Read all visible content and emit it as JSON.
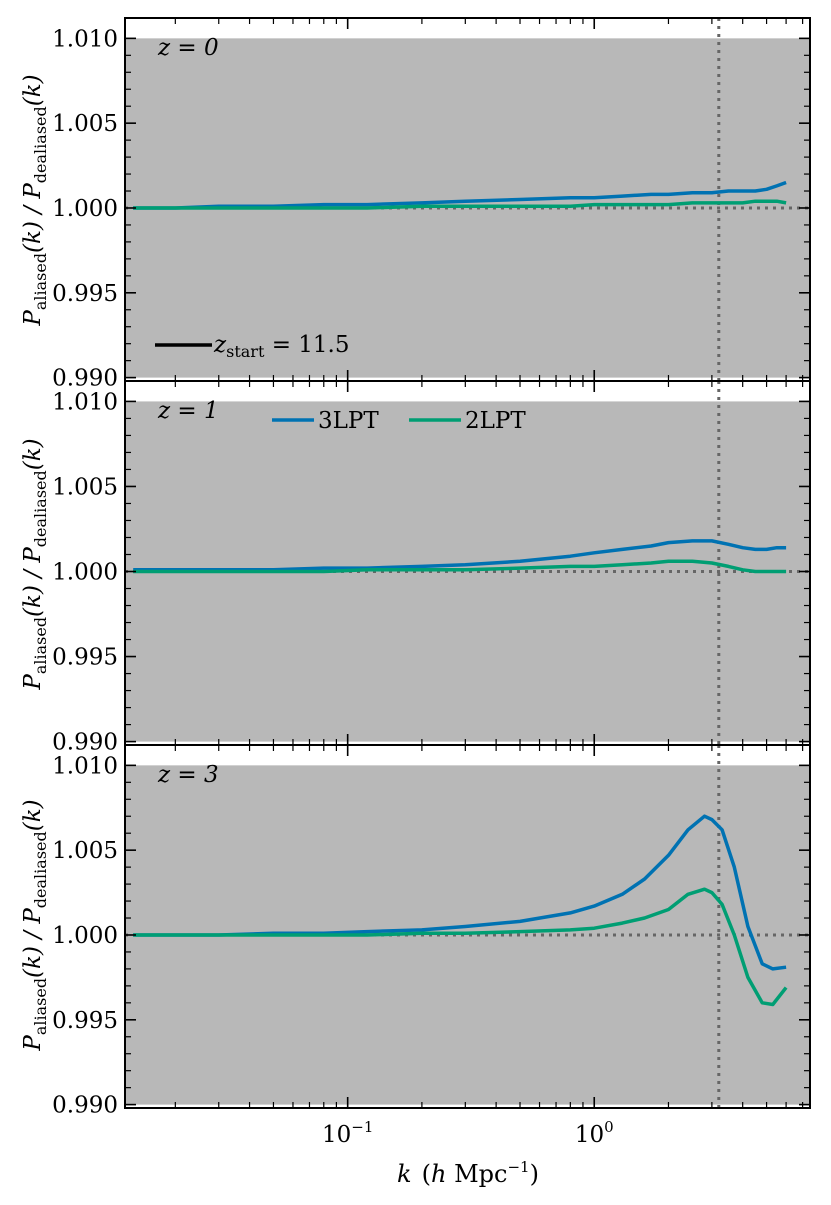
{
  "xlabel": {
    "k": "k",
    "open": "(",
    "h": "h",
    "mpc": " Mpc",
    "exp": "−1",
    "close": ")"
  },
  "ylabel": {
    "p1": "P",
    "sub1": "aliased",
    "mid": "(k) / ",
    "p2": "P",
    "sub2": "dealiased",
    "end": "(k)"
  },
  "legend_zstart": {
    "z": "z",
    "sub": "start",
    "text": " = 11.5"
  },
  "colors": {
    "3LPT": "#0072b2",
    "2LPT": "#009e73",
    "shade": "#b8b8b8",
    "reference": "#666666"
  },
  "chart_data": [
    {
      "type": "line",
      "panel_label": "z = 0",
      "xscale": "log",
      "xlim": [
        0.0125,
        7.5
      ],
      "ylim": [
        0.9898,
        1.0112
      ],
      "yticks": [
        "0.990",
        "0.995",
        "1.000",
        "1.005",
        "1.010"
      ],
      "xticks": [],
      "shaded_region": {
        "y": [
          0.99,
          1.01
        ]
      },
      "reference_lines": {
        "horizontal_y": 1.0,
        "vertical_x": 3.2
      },
      "legend": {
        "entries": [
          "z_start = 11.5"
        ],
        "placement": "lower-left"
      },
      "series": [
        {
          "name": "3LPT",
          "color": "#0072b2",
          "x": [
            0.0135,
            0.02,
            0.03,
            0.05,
            0.08,
            0.12,
            0.2,
            0.3,
            0.5,
            0.8,
            1.0,
            1.3,
            1.7,
            2.0,
            2.5,
            3.0,
            3.5,
            4.0,
            4.5,
            5.0,
            5.5,
            6.0
          ],
          "y": [
            1.0,
            1.0,
            1.0001,
            1.0001,
            1.0002,
            1.0002,
            1.0003,
            1.0004,
            1.0005,
            1.0006,
            1.0006,
            1.0007,
            1.0008,
            1.0008,
            1.0009,
            1.0009,
            1.001,
            1.001,
            1.001,
            1.0011,
            1.0013,
            1.0015
          ]
        },
        {
          "name": "2LPT",
          "color": "#009e73",
          "x": [
            0.0135,
            0.02,
            0.03,
            0.05,
            0.08,
            0.12,
            0.2,
            0.3,
            0.5,
            0.8,
            1.0,
            1.3,
            1.7,
            2.0,
            2.5,
            3.0,
            3.5,
            4.0,
            4.5,
            5.0,
            5.5,
            6.0
          ],
          "y": [
            1.0,
            1.0,
            1.0,
            1.0,
            1.0,
            1.0,
            1.0001,
            1.0001,
            1.0001,
            1.0001,
            1.0002,
            1.0002,
            1.0002,
            1.0002,
            1.0003,
            1.0003,
            1.0003,
            1.0003,
            1.0004,
            1.0004,
            1.0004,
            1.0003
          ]
        }
      ]
    },
    {
      "type": "line",
      "panel_label": "z = 1",
      "xscale": "log",
      "xlim": [
        0.0125,
        7.5
      ],
      "ylim": [
        0.9898,
        1.0112
      ],
      "yticks": [
        "0.990",
        "0.995",
        "1.000",
        "1.005",
        "1.010"
      ],
      "xticks": [],
      "shaded_region": {
        "y": [
          0.99,
          1.01
        ]
      },
      "reference_lines": {
        "horizontal_y": 1.0,
        "vertical_x": 3.2
      },
      "legend": {
        "entries": [
          "3LPT",
          "2LPT"
        ],
        "placement": "top-center"
      },
      "series": [
        {
          "name": "3LPT",
          "color": "#0072b2",
          "x": [
            0.0135,
            0.02,
            0.03,
            0.05,
            0.08,
            0.12,
            0.2,
            0.3,
            0.5,
            0.8,
            1.0,
            1.3,
            1.7,
            2.0,
            2.5,
            3.0,
            3.5,
            4.0,
            4.5,
            5.0,
            5.5,
            6.0
          ],
          "y": [
            1.0001,
            1.0001,
            1.0001,
            1.0001,
            1.0002,
            1.0002,
            1.0003,
            1.0004,
            1.0006,
            1.0009,
            1.0011,
            1.0013,
            1.0015,
            1.0017,
            1.0018,
            1.0018,
            1.0016,
            1.0014,
            1.0013,
            1.0013,
            1.0014,
            1.0014
          ]
        },
        {
          "name": "2LPT",
          "color": "#009e73",
          "x": [
            0.0135,
            0.02,
            0.03,
            0.05,
            0.08,
            0.12,
            0.2,
            0.3,
            0.5,
            0.8,
            1.0,
            1.3,
            1.7,
            2.0,
            2.5,
            3.0,
            3.5,
            4.0,
            4.5,
            5.0,
            5.5,
            6.0
          ],
          "y": [
            1.0,
            1.0,
            1.0,
            1.0,
            1.0,
            1.0001,
            1.0001,
            1.0001,
            1.0002,
            1.0003,
            1.0003,
            1.0004,
            1.0005,
            1.0006,
            1.0006,
            1.0005,
            1.0003,
            1.0001,
            1.0,
            1.0,
            1.0,
            1.0
          ]
        }
      ]
    },
    {
      "type": "line",
      "panel_label": "z = 3",
      "xscale": "log",
      "xlim": [
        0.0125,
        7.5
      ],
      "ylim": [
        0.9898,
        1.0112
      ],
      "yticks": [
        "0.990",
        "0.995",
        "1.000",
        "1.005",
        "1.010"
      ],
      "xticks": [
        "10",
        "10"
      ],
      "xtick_exponents": [
        "−1",
        "0"
      ],
      "shaded_region": {
        "y": [
          0.99,
          1.01
        ]
      },
      "reference_lines": {
        "horizontal_y": 1.0,
        "vertical_x": 3.2
      },
      "series": [
        {
          "name": "3LPT",
          "color": "#0072b2",
          "x": [
            0.0135,
            0.02,
            0.03,
            0.05,
            0.08,
            0.12,
            0.2,
            0.3,
            0.5,
            0.8,
            1.0,
            1.3,
            1.6,
            2.0,
            2.4,
            2.8,
            3.0,
            3.3,
            3.7,
            4.2,
            4.8,
            5.3,
            6.0
          ],
          "y": [
            1.0,
            1.0,
            1.0,
            1.0001,
            1.0001,
            1.0002,
            1.0003,
            1.0005,
            1.0008,
            1.0013,
            1.0017,
            1.0024,
            1.0033,
            1.0047,
            1.0062,
            1.007,
            1.0068,
            1.0062,
            1.004,
            1.0005,
            0.9983,
            0.998,
            0.9981
          ]
        },
        {
          "name": "2LPT",
          "color": "#009e73",
          "x": [
            0.0135,
            0.02,
            0.03,
            0.05,
            0.08,
            0.12,
            0.2,
            0.3,
            0.5,
            0.8,
            1.0,
            1.3,
            1.6,
            2.0,
            2.4,
            2.8,
            3.0,
            3.3,
            3.7,
            4.2,
            4.8,
            5.3,
            6.0
          ],
          "y": [
            1.0,
            1.0,
            1.0,
            1.0,
            1.0,
            1.0,
            1.0001,
            1.0001,
            1.0002,
            1.0003,
            1.0004,
            1.0007,
            1.001,
            1.0015,
            1.0024,
            1.0027,
            1.0025,
            1.0018,
            1.0,
            0.9975,
            0.996,
            0.9959,
            0.9969
          ]
        }
      ]
    }
  ]
}
